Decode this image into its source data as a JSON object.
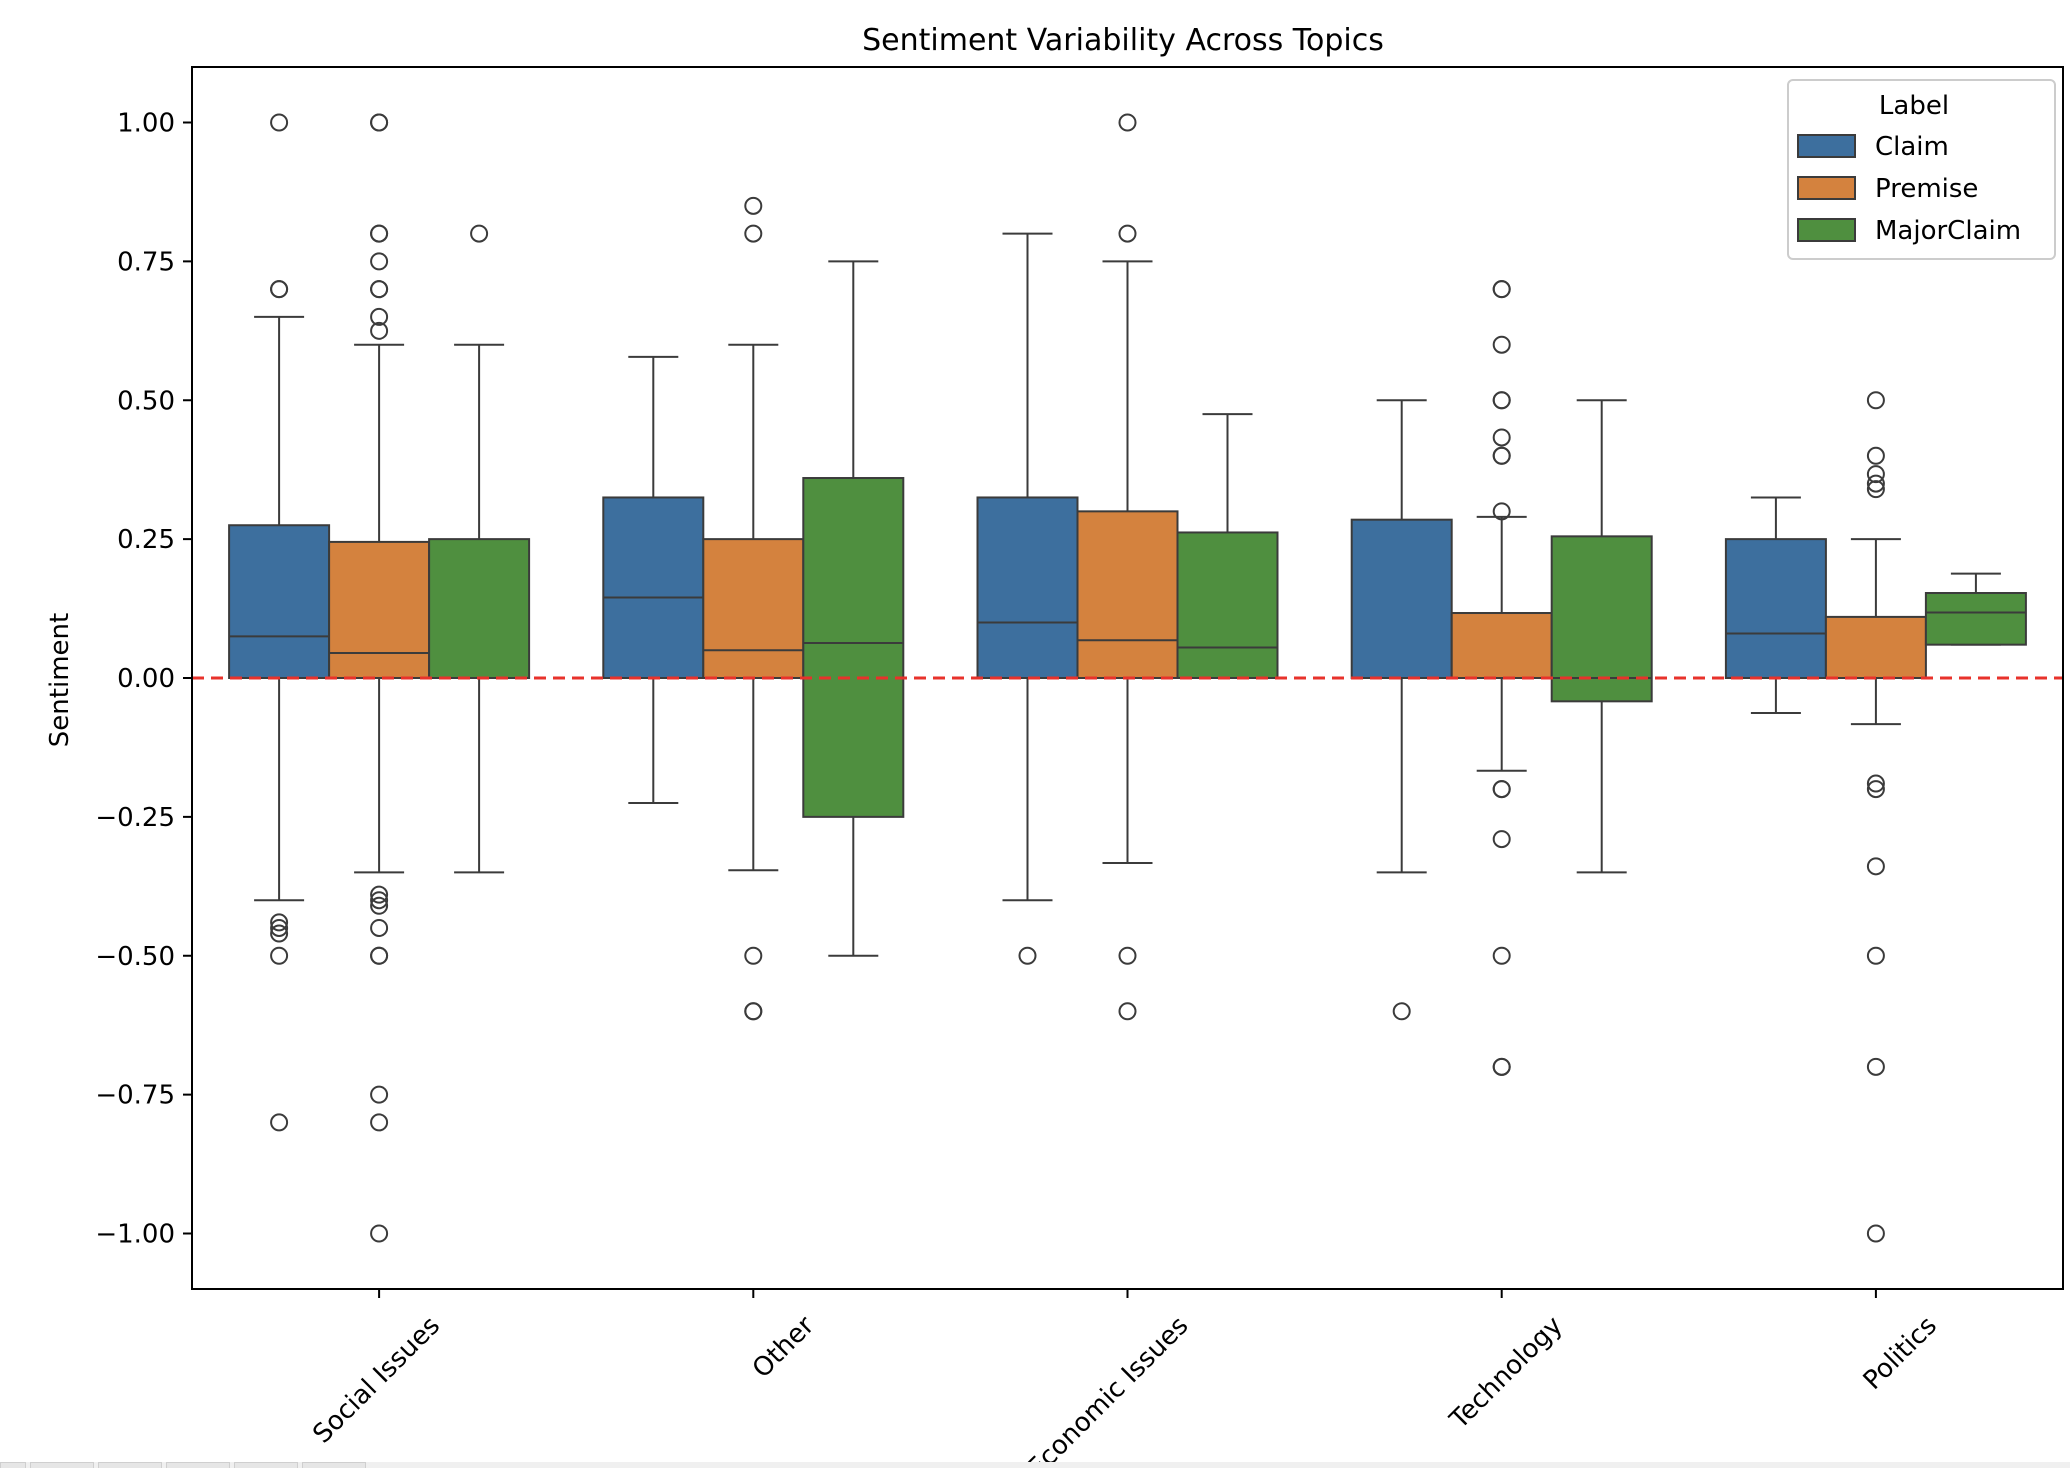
{
  "chart_data": {
    "type": "box",
    "title": "Sentiment Variability Across Topics",
    "xlabel": "",
    "ylabel": "Sentiment",
    "ylim": [
      -1.1,
      1.1
    ],
    "yticks": [
      1.0,
      0.75,
      0.5,
      0.25,
      0.0,
      -0.25,
      -0.5,
      -0.75,
      -1.0
    ],
    "ytick_labels": [
      "1.00",
      "0.75",
      "0.50",
      "0.25",
      "0.00",
      "−0.25",
      "−0.50",
      "−0.75",
      "−1.00"
    ],
    "categories": [
      "Social Issues",
      "Other",
      "Economic Issues",
      "Technology",
      "Politics"
    ],
    "legend": {
      "title": "Label",
      "position": "top-right"
    },
    "reference_line": {
      "y": 0.0,
      "style": "dashed",
      "color": "#e8322b"
    },
    "grid": false,
    "series": [
      {
        "name": "Claim",
        "color": "#3d6f9e",
        "boxes": [
          {
            "whislo": -0.4,
            "q1": 0.0,
            "med": 0.075,
            "q3": 0.275,
            "whishi": 0.65,
            "fliers": [
              1.0,
              0.7,
              0.7,
              -0.44,
              -0.45,
              -0.46,
              -0.5,
              -0.8
            ]
          },
          {
            "whislo": -0.225,
            "q1": 0.0,
            "med": 0.145,
            "q3": 0.325,
            "whishi": 0.578,
            "fliers": []
          },
          {
            "whislo": -0.4,
            "q1": 0.0,
            "med": 0.1,
            "q3": 0.325,
            "whishi": 0.8,
            "fliers": [
              -0.5
            ]
          },
          {
            "whislo": -0.35,
            "q1": 0.0,
            "med": 0.0,
            "q3": 0.285,
            "whishi": 0.5,
            "fliers": [
              -0.6
            ]
          },
          {
            "whislo": -0.063,
            "q1": 0.0,
            "med": 0.08,
            "q3": 0.25,
            "whishi": 0.325,
            "fliers": []
          }
        ]
      },
      {
        "name": "Premise",
        "color": "#d4823e",
        "boxes": [
          {
            "whislo": -0.35,
            "q1": 0.0,
            "med": 0.045,
            "q3": 0.245,
            "whishi": 0.6,
            "fliers": [
              1.0,
              1.0,
              0.8,
              0.8,
              0.75,
              0.7,
              0.7,
              0.65,
              0.625,
              -0.39,
              -0.4,
              -0.41,
              -0.45,
              -0.5,
              -0.5,
              -0.75,
              -0.8,
              -1.0
            ]
          },
          {
            "whislo": -0.346,
            "q1": 0.0,
            "med": 0.05,
            "q3": 0.25,
            "whishi": 0.6,
            "fliers": [
              0.85,
              0.8,
              -0.5,
              -0.6,
              -0.6
            ]
          },
          {
            "whislo": -0.333,
            "q1": 0.0,
            "med": 0.068,
            "q3": 0.3,
            "whishi": 0.75,
            "fliers": [
              1.0,
              0.8,
              -0.5,
              -0.6
            ]
          },
          {
            "whislo": -0.167,
            "q1": 0.0,
            "med": 0.0,
            "q3": 0.117,
            "whishi": 0.29,
            "fliers": [
              0.7,
              0.7,
              0.6,
              0.5,
              0.5,
              0.433,
              0.4,
              0.4,
              0.3,
              -0.2,
              -0.2,
              -0.29,
              -0.5,
              -0.7,
              -0.7
            ]
          },
          {
            "whislo": -0.083,
            "q1": 0.0,
            "med": 0.0,
            "q3": 0.11,
            "whishi": 0.25,
            "fliers": [
              0.5,
              0.4,
              0.367,
              0.35,
              0.34,
              -0.19,
              -0.2,
              -0.339,
              -0.5,
              -0.7,
              -1.0
            ]
          }
        ]
      },
      {
        "name": "MajorClaim",
        "color": "#4f8f3f",
        "boxes": [
          {
            "whislo": -0.35,
            "q1": 0.0,
            "med": 0.0,
            "q3": 0.25,
            "whishi": 0.6,
            "fliers": [
              0.8
            ]
          },
          {
            "whislo": -0.5,
            "q1": -0.25,
            "med": 0.063,
            "q3": 0.36,
            "whishi": 0.75,
            "fliers": []
          },
          {
            "whislo": -0.0,
            "q1": 0.0,
            "med": 0.055,
            "q3": 0.262,
            "whishi": 0.475,
            "fliers": []
          },
          {
            "whislo": -0.35,
            "q1": -0.042,
            "med": 0.0,
            "q3": 0.255,
            "whishi": 0.5,
            "fliers": []
          },
          {
            "whislo": 0.06,
            "q1": 0.06,
            "med": 0.118,
            "q3": 0.153,
            "whishi": 0.188,
            "fliers": []
          }
        ]
      }
    ]
  }
}
